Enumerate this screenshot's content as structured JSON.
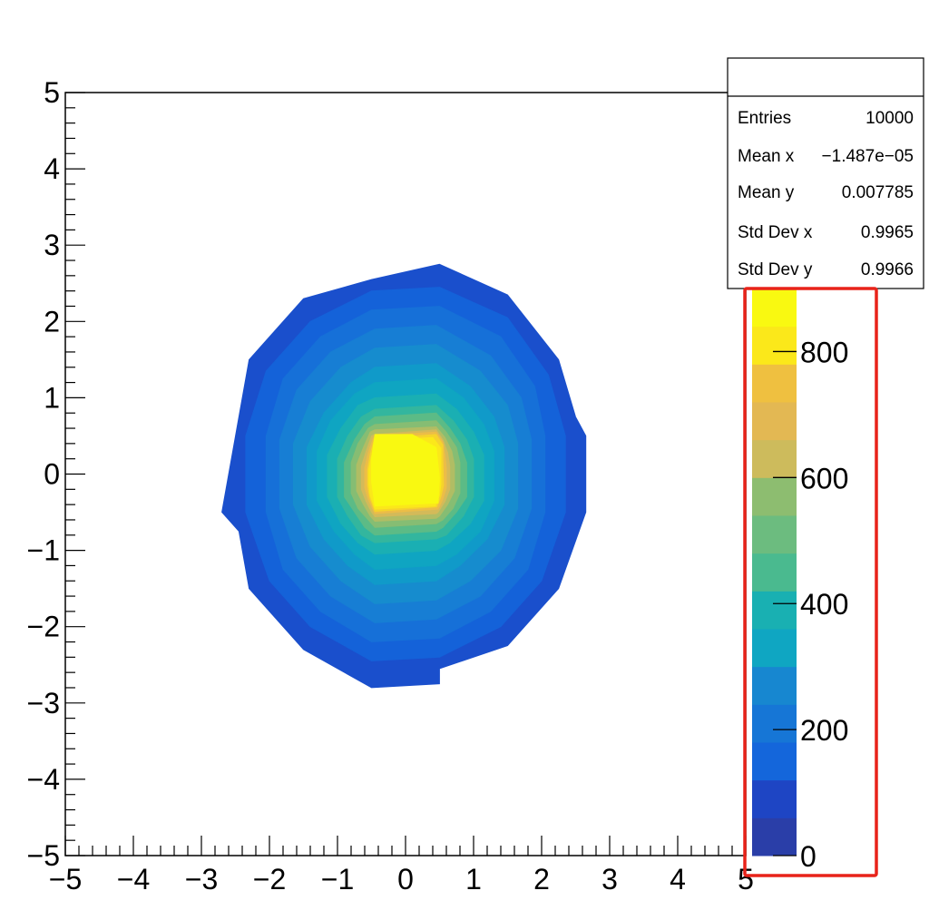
{
  "chart_data": {
    "type": "heatmap",
    "title": "",
    "xlabel": "",
    "ylabel": "",
    "xlim": [
      -5,
      5
    ],
    "ylim": [
      -5,
      5
    ],
    "x_ticks": [
      -5,
      -4,
      -3,
      -2,
      -1,
      0,
      1,
      2,
      3,
      4,
      5
    ],
    "y_ticks": [
      -5,
      -4,
      -3,
      -2,
      -1,
      0,
      1,
      2,
      3,
      4,
      5
    ],
    "x_tick_labels": [
      "−5",
      "−4",
      "−3",
      "−2",
      "−1",
      "0",
      "1",
      "2",
      "3",
      "4",
      "5"
    ],
    "y_tick_labels": [
      "−5",
      "−4",
      "−3",
      "−2",
      "−1",
      "0",
      "1",
      "2",
      "3",
      "4",
      "5"
    ],
    "distribution": "2D Gaussian contour (mean ≈ 0, std dev ≈ 1)",
    "z_range": [
      0,
      900
    ],
    "palette": [
      "#2a3ea8",
      "#1e45c4",
      "#1654d8",
      "#1466db",
      "#1676d6",
      "#1787d0",
      "#1297cb",
      "#0fa6c2",
      "#19b0b2",
      "#2db6a1",
      "#4aba8f",
      "#6cbc7f",
      "#8dbd70",
      "#aebd65",
      "#cdbb5c",
      "#e3b853",
      "#efc040",
      "#f6d42a",
      "#fbe81a",
      "#f9f911"
    ],
    "contours": [
      {
        "level": 50,
        "color": "#1a4fcc",
        "points": [
          [
            0.5,
            2.75
          ],
          [
            1.5,
            2.35
          ],
          [
            2.25,
            1.5
          ],
          [
            2.5,
            0.75
          ],
          [
            2.65,
            0.5
          ],
          [
            2.65,
            -0.5
          ],
          [
            2.25,
            -1.5
          ],
          [
            1.5,
            -2.25
          ],
          [
            0.5,
            -2.55
          ],
          [
            0.5,
            -2.75
          ],
          [
            -0.5,
            -2.8
          ],
          [
            -1.5,
            -2.3
          ],
          [
            -2.3,
            -1.5
          ],
          [
            -2.45,
            -0.75
          ],
          [
            -2.7,
            -0.5
          ],
          [
            -2.5,
            0.5
          ],
          [
            -2.3,
            1.5
          ],
          [
            -1.5,
            2.3
          ],
          [
            -0.5,
            2.55
          ]
        ]
      },
      {
        "level": 100,
        "color": "#1462d9",
        "points": [
          [
            0.5,
            2.45
          ],
          [
            1.5,
            2.05
          ],
          [
            2.1,
            1.3
          ],
          [
            2.35,
            0.5
          ],
          [
            2.35,
            -0.5
          ],
          [
            2.0,
            -1.4
          ],
          [
            1.4,
            -2.0
          ],
          [
            0.5,
            -2.4
          ],
          [
            -0.5,
            -2.45
          ],
          [
            -1.4,
            -2.0
          ],
          [
            -2.0,
            -1.4
          ],
          [
            -2.35,
            -0.5
          ],
          [
            -2.35,
            0.5
          ],
          [
            -2.05,
            1.35
          ],
          [
            -1.4,
            2.0
          ],
          [
            -0.5,
            2.4
          ]
        ]
      },
      {
        "level": 150,
        "color": "#1670d8",
        "points": [
          [
            0.5,
            2.2
          ],
          [
            1.4,
            1.8
          ],
          [
            1.9,
            1.15
          ],
          [
            2.05,
            0.5
          ],
          [
            2.05,
            -0.5
          ],
          [
            1.8,
            -1.25
          ],
          [
            1.25,
            -1.8
          ],
          [
            0.5,
            -2.15
          ],
          [
            -0.5,
            -2.2
          ],
          [
            -1.25,
            -1.8
          ],
          [
            -1.8,
            -1.25
          ],
          [
            -2.05,
            -0.5
          ],
          [
            -2.05,
            0.5
          ],
          [
            -1.8,
            1.25
          ],
          [
            -1.25,
            1.8
          ],
          [
            -0.5,
            2.15
          ]
        ]
      },
      {
        "level": 200,
        "color": "#177ed4",
        "points": [
          [
            0.45,
            1.95
          ],
          [
            1.25,
            1.55
          ],
          [
            1.7,
            1.0
          ],
          [
            1.85,
            0.45
          ],
          [
            1.85,
            -0.45
          ],
          [
            1.6,
            -1.1
          ],
          [
            1.1,
            -1.6
          ],
          [
            0.45,
            -1.9
          ],
          [
            -0.45,
            -1.95
          ],
          [
            -1.1,
            -1.6
          ],
          [
            -1.6,
            -1.1
          ],
          [
            -1.85,
            -0.45
          ],
          [
            -1.85,
            0.45
          ],
          [
            -1.6,
            1.1
          ],
          [
            -1.1,
            1.6
          ],
          [
            -0.45,
            1.9
          ]
        ]
      },
      {
        "level": 250,
        "color": "#168cce",
        "points": [
          [
            0.45,
            1.7
          ],
          [
            1.1,
            1.35
          ],
          [
            1.5,
            0.9
          ],
          [
            1.65,
            0.4
          ],
          [
            1.65,
            -0.45
          ],
          [
            1.4,
            -1.0
          ],
          [
            0.95,
            -1.4
          ],
          [
            0.45,
            -1.65
          ],
          [
            -0.45,
            -1.7
          ],
          [
            -0.95,
            -1.4
          ],
          [
            -1.4,
            -0.95
          ],
          [
            -1.65,
            -0.4
          ],
          [
            -1.65,
            0.4
          ],
          [
            -1.4,
            0.95
          ],
          [
            -0.95,
            1.4
          ],
          [
            -0.45,
            1.65
          ]
        ]
      },
      {
        "level": 300,
        "color": "#109ac9",
        "points": [
          [
            0.45,
            1.45
          ],
          [
            0.95,
            1.15
          ],
          [
            1.3,
            0.75
          ],
          [
            1.45,
            0.35
          ],
          [
            1.45,
            -0.4
          ],
          [
            1.2,
            -0.85
          ],
          [
            0.8,
            -1.2
          ],
          [
            0.45,
            -1.4
          ],
          [
            -0.45,
            -1.45
          ],
          [
            -0.85,
            -1.2
          ],
          [
            -1.2,
            -0.85
          ],
          [
            -1.45,
            -0.4
          ],
          [
            -1.45,
            0.35
          ],
          [
            -1.2,
            0.8
          ],
          [
            -0.8,
            1.2
          ],
          [
            -0.45,
            1.4
          ]
        ]
      },
      {
        "level": 350,
        "color": "#0fa5c2",
        "points": [
          [
            0.45,
            1.25
          ],
          [
            0.85,
            1.0
          ],
          [
            1.15,
            0.65
          ],
          [
            1.3,
            0.3
          ],
          [
            1.3,
            -0.35
          ],
          [
            1.1,
            -0.75
          ],
          [
            0.75,
            -1.05
          ],
          [
            0.45,
            -1.2
          ],
          [
            -0.45,
            -1.25
          ],
          [
            -0.75,
            -1.05
          ],
          [
            -1.05,
            -0.75
          ],
          [
            -1.3,
            -0.35
          ],
          [
            -1.3,
            0.3
          ],
          [
            -1.1,
            0.7
          ],
          [
            -0.75,
            1.05
          ],
          [
            -0.45,
            1.2
          ]
        ]
      },
      {
        "level": 400,
        "color": "#1aafb3",
        "points": [
          [
            0.45,
            1.05
          ],
          [
            0.75,
            0.85
          ],
          [
            1.0,
            0.55
          ],
          [
            1.15,
            0.25
          ],
          [
            1.15,
            -0.35
          ],
          [
            0.95,
            -0.65
          ],
          [
            0.65,
            -0.9
          ],
          [
            0.45,
            -1.0
          ],
          [
            -0.45,
            -1.05
          ],
          [
            -0.7,
            -0.9
          ],
          [
            -0.95,
            -0.65
          ],
          [
            -1.15,
            -0.3
          ],
          [
            -1.15,
            0.25
          ],
          [
            -0.95,
            0.6
          ],
          [
            -0.7,
            0.9
          ],
          [
            -0.45,
            1.0
          ]
        ]
      },
      {
        "level": 450,
        "color": "#33b69e",
        "points": [
          [
            0.45,
            0.9
          ],
          [
            0.7,
            0.7
          ],
          [
            0.9,
            0.45
          ],
          [
            1.0,
            0.2
          ],
          [
            1.0,
            -0.3
          ],
          [
            0.85,
            -0.55
          ],
          [
            0.6,
            -0.8
          ],
          [
            0.45,
            -0.85
          ],
          [
            -0.45,
            -0.9
          ],
          [
            -0.65,
            -0.8
          ],
          [
            -0.85,
            -0.55
          ],
          [
            -1.0,
            -0.3
          ],
          [
            -1.0,
            0.2
          ],
          [
            -0.85,
            0.5
          ],
          [
            -0.65,
            0.75
          ],
          [
            -0.45,
            0.85
          ]
        ]
      },
      {
        "level": 500,
        "color": "#5cbb86",
        "points": [
          [
            0.45,
            0.8
          ],
          [
            0.65,
            0.6
          ],
          [
            0.8,
            0.4
          ],
          [
            0.9,
            0.15
          ],
          [
            0.9,
            -0.3
          ],
          [
            0.75,
            -0.5
          ],
          [
            0.55,
            -0.7
          ],
          [
            0.45,
            -0.75
          ],
          [
            -0.45,
            -0.8
          ],
          [
            -0.6,
            -0.7
          ],
          [
            -0.75,
            -0.5
          ],
          [
            -0.9,
            -0.3
          ],
          [
            -0.9,
            0.15
          ],
          [
            -0.75,
            0.45
          ],
          [
            -0.6,
            0.65
          ],
          [
            -0.45,
            0.75
          ]
        ]
      },
      {
        "level": 550,
        "color": "#86bd73",
        "points": [
          [
            0.45,
            0.7
          ],
          [
            0.6,
            0.55
          ],
          [
            0.75,
            0.35
          ],
          [
            0.8,
            0.15
          ],
          [
            0.8,
            -0.25
          ],
          [
            0.7,
            -0.45
          ],
          [
            0.55,
            -0.6
          ],
          [
            0.45,
            -0.65
          ],
          [
            -0.45,
            -0.7
          ],
          [
            -0.55,
            -0.6
          ],
          [
            -0.7,
            -0.45
          ],
          [
            -0.8,
            -0.25
          ],
          [
            -0.8,
            0.15
          ],
          [
            -0.7,
            0.4
          ],
          [
            -0.55,
            0.6
          ],
          [
            -0.45,
            0.65
          ]
        ]
      },
      {
        "level": 600,
        "color": "#b0bd64",
        "points": [
          [
            0.45,
            0.62
          ],
          [
            0.58,
            0.48
          ],
          [
            0.68,
            0.3
          ],
          [
            0.72,
            0.12
          ],
          [
            0.72,
            -0.22
          ],
          [
            0.62,
            -0.4
          ],
          [
            0.5,
            -0.55
          ],
          [
            0.45,
            -0.58
          ],
          [
            -0.45,
            -0.62
          ],
          [
            -0.52,
            -0.55
          ],
          [
            -0.62,
            -0.4
          ],
          [
            -0.72,
            -0.22
          ],
          [
            -0.72,
            0.12
          ],
          [
            -0.62,
            0.35
          ],
          [
            -0.52,
            0.55
          ],
          [
            -0.45,
            0.58
          ]
        ]
      },
      {
        "level": 650,
        "color": "#d4ba59",
        "points": [
          [
            0.45,
            0.58
          ],
          [
            0.55,
            0.45
          ],
          [
            0.62,
            0.28
          ],
          [
            0.65,
            0.1
          ],
          [
            0.65,
            -0.2
          ],
          [
            0.58,
            -0.36
          ],
          [
            0.48,
            -0.5
          ],
          [
            0.45,
            -0.52
          ],
          [
            -0.45,
            -0.56
          ],
          [
            -0.5,
            -0.5
          ],
          [
            -0.58,
            -0.36
          ],
          [
            -0.65,
            -0.2
          ],
          [
            -0.65,
            0.1
          ],
          [
            -0.58,
            0.3
          ],
          [
            -0.5,
            0.5
          ],
          [
            -0.45,
            0.52
          ]
        ]
      },
      {
        "level": 700,
        "color": "#ecbd47",
        "points": [
          [
            0.45,
            0.55
          ],
          [
            0.55,
            0.42
          ],
          [
            0.58,
            0.25
          ],
          [
            0.6,
            0.08
          ],
          [
            0.6,
            -0.18
          ],
          [
            0.55,
            -0.33
          ],
          [
            0.48,
            -0.46
          ],
          [
            -0.45,
            -0.52
          ],
          [
            -0.55,
            -0.33
          ],
          [
            -0.6,
            -0.18
          ],
          [
            -0.6,
            0.08
          ],
          [
            -0.55,
            0.28
          ],
          [
            -0.48,
            0.46
          ],
          [
            -0.45,
            0.5
          ]
        ]
      },
      {
        "level": 750,
        "color": "#f6d42b",
        "points": [
          [
            0.45,
            0.52
          ],
          [
            0.55,
            0.38
          ],
          [
            0.55,
            0.22
          ],
          [
            0.56,
            -0.15
          ],
          [
            0.52,
            -0.3
          ],
          [
            0.46,
            -0.43
          ],
          [
            -0.45,
            -0.49
          ],
          [
            -0.53,
            -0.3
          ],
          [
            -0.56,
            -0.15
          ],
          [
            -0.56,
            0.06
          ],
          [
            -0.52,
            0.26
          ],
          [
            -0.46,
            0.46
          ]
        ]
      },
      {
        "level": 800,
        "color": "#fbe81a",
        "points": [
          [
            0.4,
            0.48
          ],
          [
            0.52,
            0.34
          ],
          [
            0.52,
            0.18
          ],
          [
            0.52,
            -0.14
          ],
          [
            0.5,
            -0.28
          ],
          [
            0.44,
            -0.42
          ],
          [
            -0.45,
            -0.46
          ],
          [
            -0.52,
            -0.28
          ],
          [
            -0.54,
            -0.12
          ],
          [
            -0.54,
            0.06
          ],
          [
            -0.5,
            0.24
          ],
          [
            -0.46,
            0.44
          ]
        ]
      },
      {
        "level": 850,
        "color": "#f9f911",
        "points": [
          [
            0.1,
            0.52
          ],
          [
            0.45,
            0.35
          ],
          [
            0.5,
            -0.05
          ],
          [
            0.48,
            -0.38
          ],
          [
            -0.45,
            -0.42
          ],
          [
            -0.5,
            -0.1
          ],
          [
            -0.5,
            0.2
          ],
          [
            -0.45,
            0.52
          ]
        ]
      }
    ],
    "colorbar": {
      "range": [
        0,
        900
      ],
      "ticks": [
        0,
        200,
        400,
        600,
        800
      ],
      "tick_labels": [
        "0",
        "200",
        "400",
        "600",
        "800"
      ],
      "n_bands": 15
    },
    "stats_box": {
      "title": "",
      "rows": [
        {
          "label": "Entries",
          "value": "10000"
        },
        {
          "label": "Mean x",
          "value": "−1.487e−05"
        },
        {
          "label": "Mean y",
          "value": "0.007785"
        },
        {
          "label": "Std Dev x",
          "value": "0.9965"
        },
        {
          "label": "Std Dev y",
          "value": "0.9966"
        }
      ]
    }
  },
  "annotation": {
    "type": "highlight-box",
    "target": "colorbar",
    "color": "#e8231a"
  }
}
